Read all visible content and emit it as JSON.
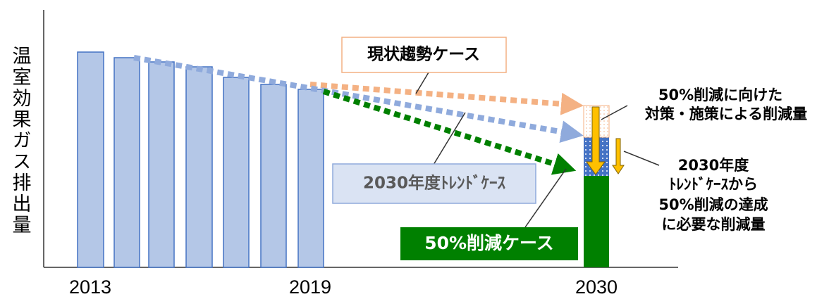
{
  "y_axis_label": "温室効果ガス排出量",
  "x_labels": [
    "2013",
    "2019",
    "2030"
  ],
  "cases": {
    "current_trend": "現状趨勢ケース",
    "trend_2030": "2030年度ﾄﾚﾝﾄﾞｹｰｽ",
    "reduction_50": "50%削減ケース"
  },
  "annotations": {
    "policy_reduction": [
      "50%削減に向けた",
      "対策・施策による削減量"
    ],
    "required_reduction": [
      "2030年度",
      "ﾄﾚﾝﾄﾞｹｰｽから",
      "50%削減の達成",
      "に必要な削減量"
    ]
  }
}
